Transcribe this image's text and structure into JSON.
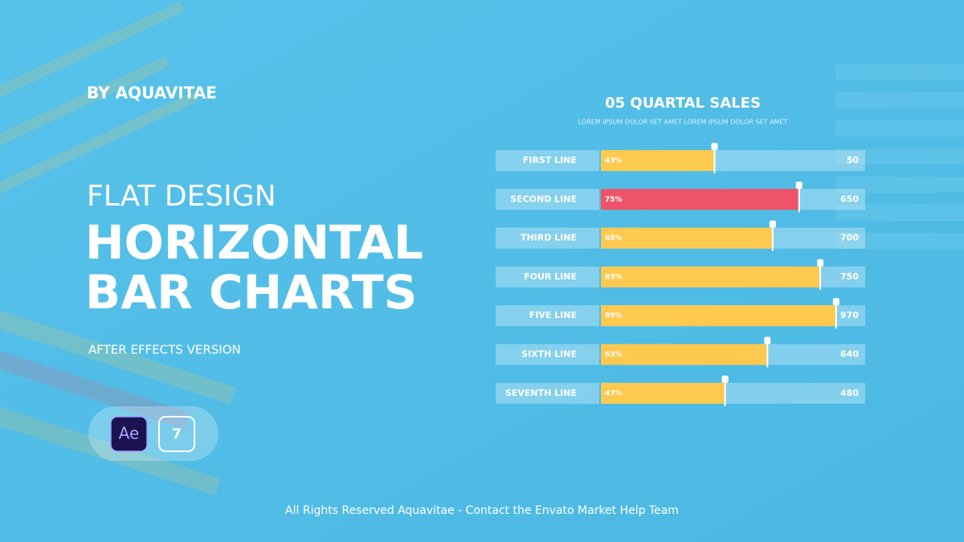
{
  "header": {
    "brand": "BY AQUAVITAE",
    "kicker": "FLAT DESIGN",
    "title_line_1": "HORIZONTAL",
    "title_line_2": "BAR CHARTS",
    "version": "AFTER EFFECTS VERSION",
    "app_badge": "Ae",
    "app_version": "7"
  },
  "footer": "All Rights Reserved Aquavitae - Contact the Envato Market Help Team",
  "chart_data": {
    "type": "hbar",
    "title": "05 QUARTAL SALES",
    "subtitle": "LOREM IPSUM DOLOR SET AMET LOREM IPSUM DOLOR SET AMET",
    "categories": [
      "FIRST LINE",
      "SECOND LINE",
      "THIRD LINE",
      "FOUR LINE",
      "FIVE LINE",
      "SIXTH LINE",
      "SEVENTH LINE"
    ],
    "values": [
      43,
      75,
      65,
      83,
      89,
      63,
      47
    ],
    "value_labels": [
      "43%",
      "75%",
      "65%",
      "83%",
      "89%",
      "63%",
      "47%"
    ],
    "totals": [
      50,
      650,
      700,
      750,
      970,
      640,
      480
    ],
    "colors": [
      "#fdc94f",
      "#ef5369",
      "#fdc94f",
      "#fdc94f",
      "#fdc94f",
      "#fdc94f",
      "#fdc94f"
    ],
    "xlim": [
      0,
      100
    ]
  }
}
